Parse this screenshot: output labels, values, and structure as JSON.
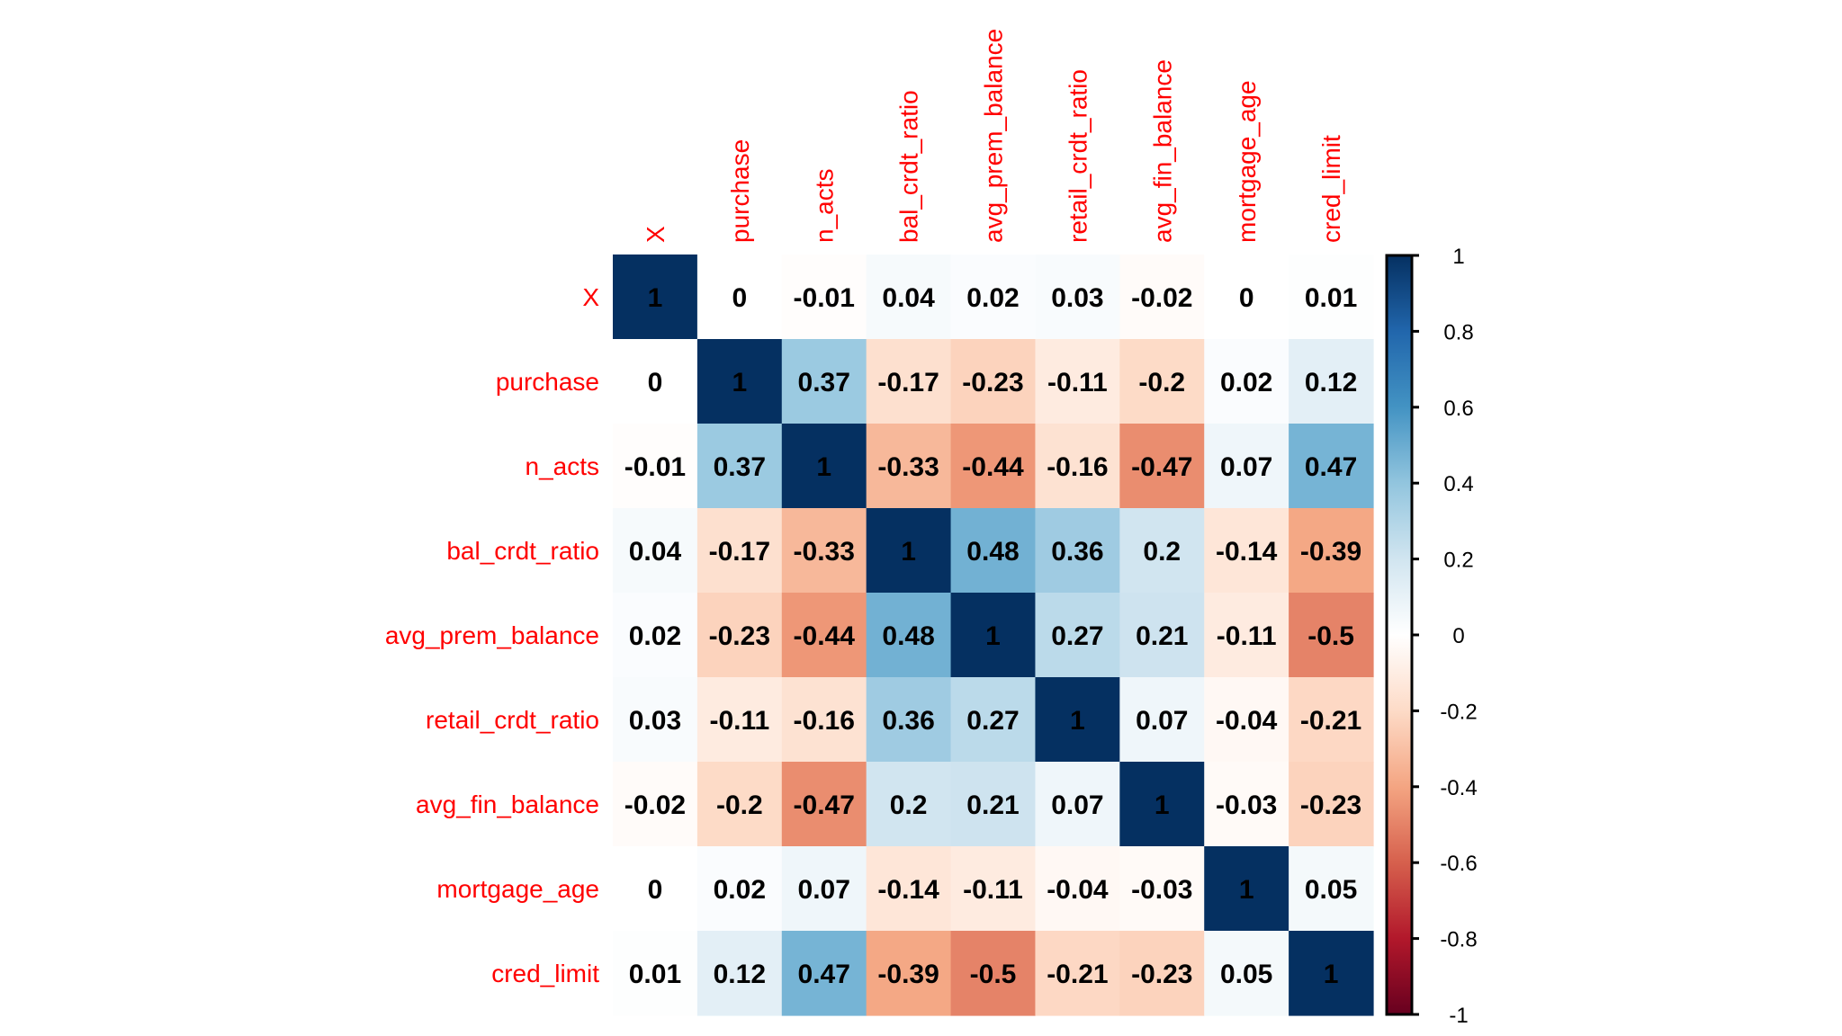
{
  "chart_data": {
    "type": "heatmap",
    "title": "",
    "variables": [
      "X",
      "purchase",
      "n_acts",
      "bal_crdt_ratio",
      "avg_prem_balance",
      "retail_crdt_ratio",
      "avg_fin_balance",
      "mortgage_age",
      "cred_limit"
    ],
    "matrix": [
      [
        1,
        0,
        -0.01,
        0.04,
        0.02,
        0.03,
        -0.02,
        0,
        0.01
      ],
      [
        0,
        1,
        0.37,
        -0.17,
        -0.23,
        -0.11,
        -0.2,
        0.02,
        0.12
      ],
      [
        -0.01,
        0.37,
        1,
        -0.33,
        -0.44,
        -0.16,
        -0.47,
        0.07,
        0.47
      ],
      [
        0.04,
        -0.17,
        -0.33,
        1,
        0.48,
        0.36,
        0.2,
        -0.14,
        -0.39
      ],
      [
        0.02,
        -0.23,
        -0.44,
        0.48,
        1,
        0.27,
        0.21,
        -0.11,
        -0.5
      ],
      [
        0.03,
        -0.11,
        -0.16,
        0.36,
        0.27,
        1,
        0.07,
        -0.04,
        -0.21
      ],
      [
        -0.02,
        -0.2,
        -0.47,
        0.2,
        0.21,
        0.07,
        1,
        -0.03,
        -0.23
      ],
      [
        0,
        0.02,
        0.07,
        -0.14,
        -0.11,
        -0.04,
        -0.03,
        1,
        0.05
      ],
      [
        0.01,
        0.12,
        0.47,
        -0.39,
        -0.5,
        -0.21,
        -0.23,
        0.05,
        1
      ]
    ],
    "colorbar": {
      "range": [
        -1,
        1
      ],
      "ticks": [
        1,
        0.8,
        0.6,
        0.4,
        0.2,
        0,
        -0.2,
        -0.4,
        -0.6,
        -0.8,
        -1
      ],
      "tick_labels": [
        "1",
        "0.8",
        "0.6",
        "0.4",
        "0.2",
        "0",
        "-0.2",
        "-0.4",
        "-0.6",
        "-0.8",
        "-1"
      ],
      "placement": "right",
      "palette": [
        "#67001F",
        "#B2182B",
        "#D6604D",
        "#F4A582",
        "#FDDBC7",
        "#FFFFFF",
        "#D1E5F0",
        "#92C5DE",
        "#4393C3",
        "#2166AC",
        "#053061"
      ]
    },
    "label_color": "#FF0000",
    "value_label_color": "#000000",
    "grid": false
  }
}
